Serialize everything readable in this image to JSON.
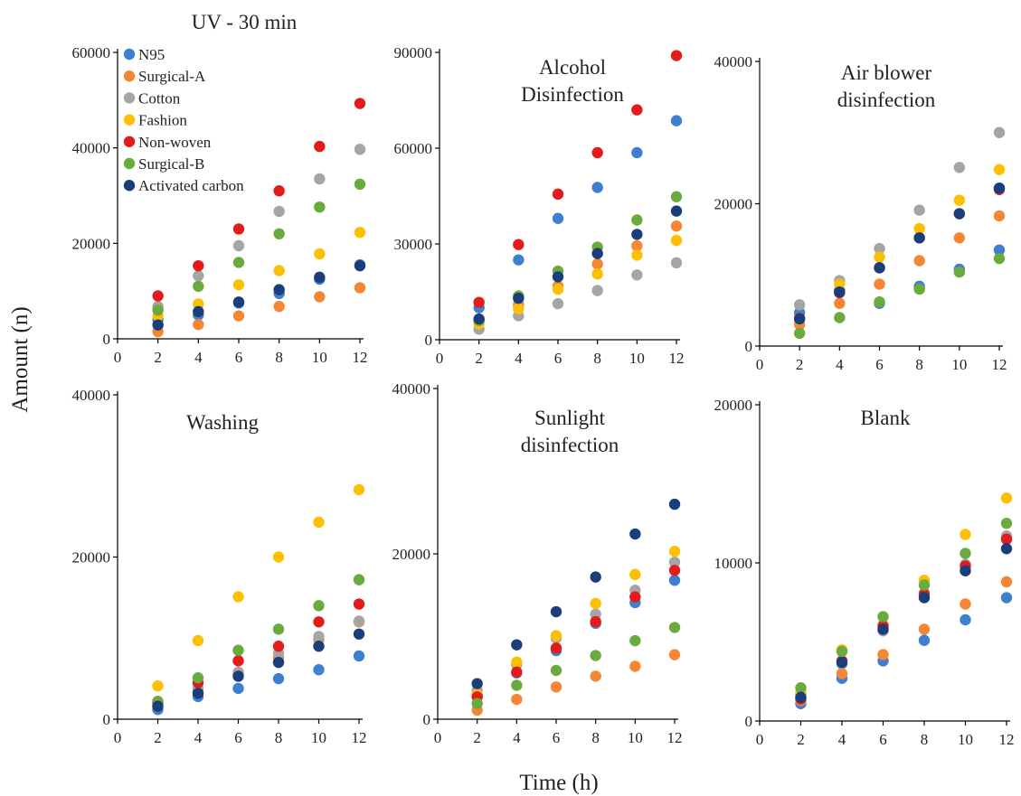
{
  "figure": {
    "ylabel": "Amount (n)",
    "xlabel": "Time (h)"
  },
  "colors": {
    "N95": "#3f7fd0",
    "Surgical-A": "#f58734",
    "Cotton": "#a5a5a5",
    "Fashion": "#fcc000",
    "Non-woven": "#e41b1b",
    "Surgical-B": "#6aab3d",
    "Activated carbon": "#1a3d7c"
  },
  "legend": [
    "N95",
    "Surgical-A",
    "Cotton",
    "Fashion",
    "Non-woven",
    "Surgical-B",
    "Activated carbon"
  ],
  "chart_data": [
    {
      "type": "scatter",
      "title": "UV - 30 min",
      "x": [
        2,
        4,
        6,
        8,
        10,
        12
      ],
      "xticks": [
        0,
        2,
        4,
        6,
        8,
        10,
        12
      ],
      "xlim": [
        0,
        12
      ],
      "ylim": [
        0,
        60000
      ],
      "yticks": [
        0,
        20000,
        40000,
        60000
      ],
      "series": [
        {
          "name": "N95",
          "values": [
            4000,
            5000,
            7500,
            9500,
            12500,
            15500
          ]
        },
        {
          "name": "Surgical-A",
          "values": [
            1500,
            3000,
            4800,
            6800,
            8800,
            10700
          ]
        },
        {
          "name": "Cotton",
          "values": [
            6800,
            13200,
            19500,
            26700,
            33500,
            39700
          ]
        },
        {
          "name": "Fashion",
          "values": [
            4800,
            7300,
            11300,
            14300,
            17800,
            22300
          ]
        },
        {
          "name": "Non-woven",
          "values": [
            9000,
            15300,
            23000,
            31000,
            40300,
            49300
          ]
        },
        {
          "name": "Surgical-B",
          "values": [
            6000,
            11000,
            16000,
            22000,
            27600,
            32400
          ]
        },
        {
          "name": "Activated carbon",
          "values": [
            2900,
            5700,
            7700,
            10300,
            12900,
            15300
          ]
        }
      ]
    },
    {
      "type": "scatter",
      "title": "Alcohol\nDisinfection",
      "x": [
        2,
        4,
        6,
        8,
        10,
        12
      ],
      "xticks": [
        0,
        2,
        4,
        6,
        8,
        10,
        12
      ],
      "xlim": [
        0,
        12
      ],
      "ylim": [
        0,
        90000
      ],
      "yticks": [
        0,
        30000,
        60000,
        90000
      ],
      "series": [
        {
          "name": "N95",
          "values": [
            10000,
            25000,
            38000,
            47700,
            58600,
            68600
          ]
        },
        {
          "name": "Surgical-A",
          "values": [
            6000,
            11000,
            16800,
            23700,
            29400,
            35600
          ]
        },
        {
          "name": "Cotton",
          "values": [
            3300,
            7500,
            11300,
            15400,
            20300,
            24100
          ]
        },
        {
          "name": "Fashion",
          "values": [
            5000,
            9700,
            15800,
            20600,
            26500,
            31100
          ]
        },
        {
          "name": "Non-woven",
          "values": [
            11700,
            29800,
            45600,
            58600,
            72000,
            89000
          ]
        },
        {
          "name": "Surgical-B",
          "values": [
            6000,
            13700,
            21500,
            29000,
            37500,
            44800
          ]
        },
        {
          "name": "Activated carbon",
          "values": [
            6500,
            13000,
            19700,
            27000,
            33000,
            40300
          ]
        }
      ]
    },
    {
      "type": "scatter",
      "title": "Air blower\ndisinfection",
      "x": [
        2,
        4,
        6,
        8,
        10,
        12
      ],
      "xticks": [
        0,
        2,
        4,
        6,
        8,
        10,
        12
      ],
      "xlim": [
        0,
        12
      ],
      "ylim": [
        0,
        40000
      ],
      "yticks": [
        0,
        20000,
        40000
      ],
      "series": [
        {
          "name": "N95",
          "values": [
            4700,
            7800,
            6000,
            8400,
            10800,
            13500
          ]
        },
        {
          "name": "Surgical-A",
          "values": [
            3000,
            6000,
            8700,
            12000,
            15200,
            18300
          ]
        },
        {
          "name": "Cotton",
          "values": [
            5800,
            9200,
            13700,
            19100,
            25100,
            30000
          ]
        },
        {
          "name": "Fashion",
          "values": [
            3700,
            8700,
            12500,
            16500,
            20500,
            24800
          ]
        },
        {
          "name": "Non-woven",
          "values": [
            3900,
            7500,
            11000,
            15200,
            18600,
            22000
          ]
        },
        {
          "name": "Surgical-B",
          "values": [
            1800,
            4000,
            6200,
            8000,
            10400,
            12300
          ]
        },
        {
          "name": "Activated carbon",
          "values": [
            3800,
            7600,
            11000,
            15200,
            18600,
            22200
          ]
        }
      ]
    },
    {
      "type": "scatter",
      "title": "Washing",
      "x": [
        2,
        4,
        6,
        8,
        10,
        12
      ],
      "xticks": [
        0,
        2,
        4,
        6,
        8,
        10,
        12
      ],
      "xlim": [
        0,
        12
      ],
      "ylim": [
        0,
        40000
      ],
      "yticks": [
        0,
        20000,
        40000
      ],
      "series": [
        {
          "name": "N95",
          "values": [
            1200,
            2800,
            3800,
            5000,
            6100,
            7800
          ]
        },
        {
          "name": "Surgical-A",
          "values": [
            1900,
            3400,
            5600,
            7600,
            9800,
            12000
          ]
        },
        {
          "name": "Cotton",
          "values": [
            2000,
            3800,
            5800,
            8100,
            10200,
            12100
          ]
        },
        {
          "name": "Fashion",
          "values": [
            4100,
            9700,
            15100,
            20000,
            24300,
            28300
          ]
        },
        {
          "name": "Non-woven",
          "values": [
            2100,
            4500,
            7200,
            9000,
            12000,
            14200
          ]
        },
        {
          "name": "Surgical-B",
          "values": [
            2200,
            5100,
            8500,
            11100,
            14000,
            17200
          ]
        },
        {
          "name": "Activated carbon",
          "values": [
            1600,
            3200,
            5300,
            7000,
            9000,
            10500
          ]
        }
      ]
    },
    {
      "type": "scatter",
      "title": "Sunlight\ndisinfection",
      "x": [
        2,
        4,
        6,
        8,
        10,
        12
      ],
      "xticks": [
        0,
        2,
        4,
        6,
        8,
        10,
        12
      ],
      "xlim": [
        0,
        12
      ],
      "ylim": [
        0,
        40000
      ],
      "yticks": [
        0,
        20000,
        40000
      ],
      "series": [
        {
          "name": "N95",
          "values": [
            2800,
            5600,
            8300,
            11600,
            14100,
            16800
          ]
        },
        {
          "name": "Surgical-A",
          "values": [
            1100,
            2400,
            3900,
            5200,
            6400,
            7800
          ]
        },
        {
          "name": "Cotton",
          "values": [
            3500,
            6600,
            9800,
            12700,
            15600,
            19000
          ]
        },
        {
          "name": "Fashion",
          "values": [
            3000,
            6900,
            10100,
            14000,
            17500,
            20300
          ]
        },
        {
          "name": "Non-woven",
          "values": [
            2700,
            5700,
            8600,
            11800,
            14800,
            18000
          ]
        },
        {
          "name": "Surgical-B",
          "values": [
            1900,
            4100,
            5900,
            7700,
            9500,
            11100
          ]
        },
        {
          "name": "Activated carbon",
          "values": [
            4300,
            9000,
            13000,
            17200,
            22400,
            26000
          ]
        }
      ]
    },
    {
      "type": "scatter",
      "title": "Blank",
      "x": [
        2,
        4,
        6,
        8,
        10,
        12
      ],
      "xticks": [
        0,
        2,
        4,
        6,
        8,
        10,
        12
      ],
      "xlim": [
        0,
        12
      ],
      "ylim": [
        0,
        20000
      ],
      "yticks": [
        0,
        10000,
        20000
      ],
      "series": [
        {
          "name": "N95",
          "values": [
            1100,
            2700,
            3800,
            5100,
            6400,
            7800
          ]
        },
        {
          "name": "Surgical-A",
          "values": [
            1300,
            3000,
            4200,
            5800,
            7400,
            8800
          ]
        },
        {
          "name": "Cotton",
          "values": [
            1700,
            3600,
            5700,
            8100,
            9900,
            11700
          ]
        },
        {
          "name": "Fashion",
          "values": [
            1800,
            4500,
            6100,
            8900,
            11800,
            14100
          ]
        },
        {
          "name": "Non-woven",
          "values": [
            1400,
            3800,
            6000,
            8000,
            9800,
            11500
          ]
        },
        {
          "name": "Surgical-B",
          "values": [
            2100,
            4400,
            6600,
            8600,
            10600,
            12500
          ]
        },
        {
          "name": "Activated carbon",
          "values": [
            1500,
            3700,
            5800,
            7800,
            9500,
            10900
          ]
        }
      ]
    }
  ]
}
